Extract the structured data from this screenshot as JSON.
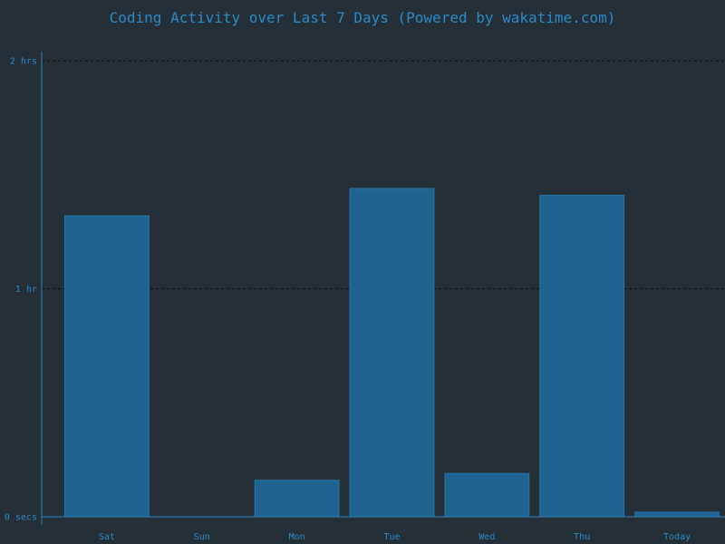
{
  "chart_data": {
    "type": "bar",
    "title": "Coding Activity over Last 7 Days (Powered by wakatime.com)",
    "xlabel": "",
    "ylabel": "",
    "categories": [
      "Sat",
      "Sun",
      "Mon",
      "Tue",
      "Wed",
      "Thu",
      "Today"
    ],
    "values": [
      1.32,
      0,
      0.16,
      1.44,
      0.19,
      1.41,
      0.02
    ],
    "value_unit": "hours",
    "ylim": [
      0,
      2.04
    ],
    "yticks": [
      {
        "value": 0,
        "label": "0 secs"
      },
      {
        "value": 1,
        "label": "1 hr"
      },
      {
        "value": 2,
        "label": "2 hrs"
      }
    ],
    "grid": "dashed horizontal at 1 hr and 2 hrs",
    "legend": "none",
    "colors": {
      "background": "#242f38",
      "bar": "#1f6391",
      "bar_stroke": "#2a78ad",
      "axis": "#2a78ad",
      "text": "#2d8ac7",
      "grid": "#0c1216"
    }
  }
}
